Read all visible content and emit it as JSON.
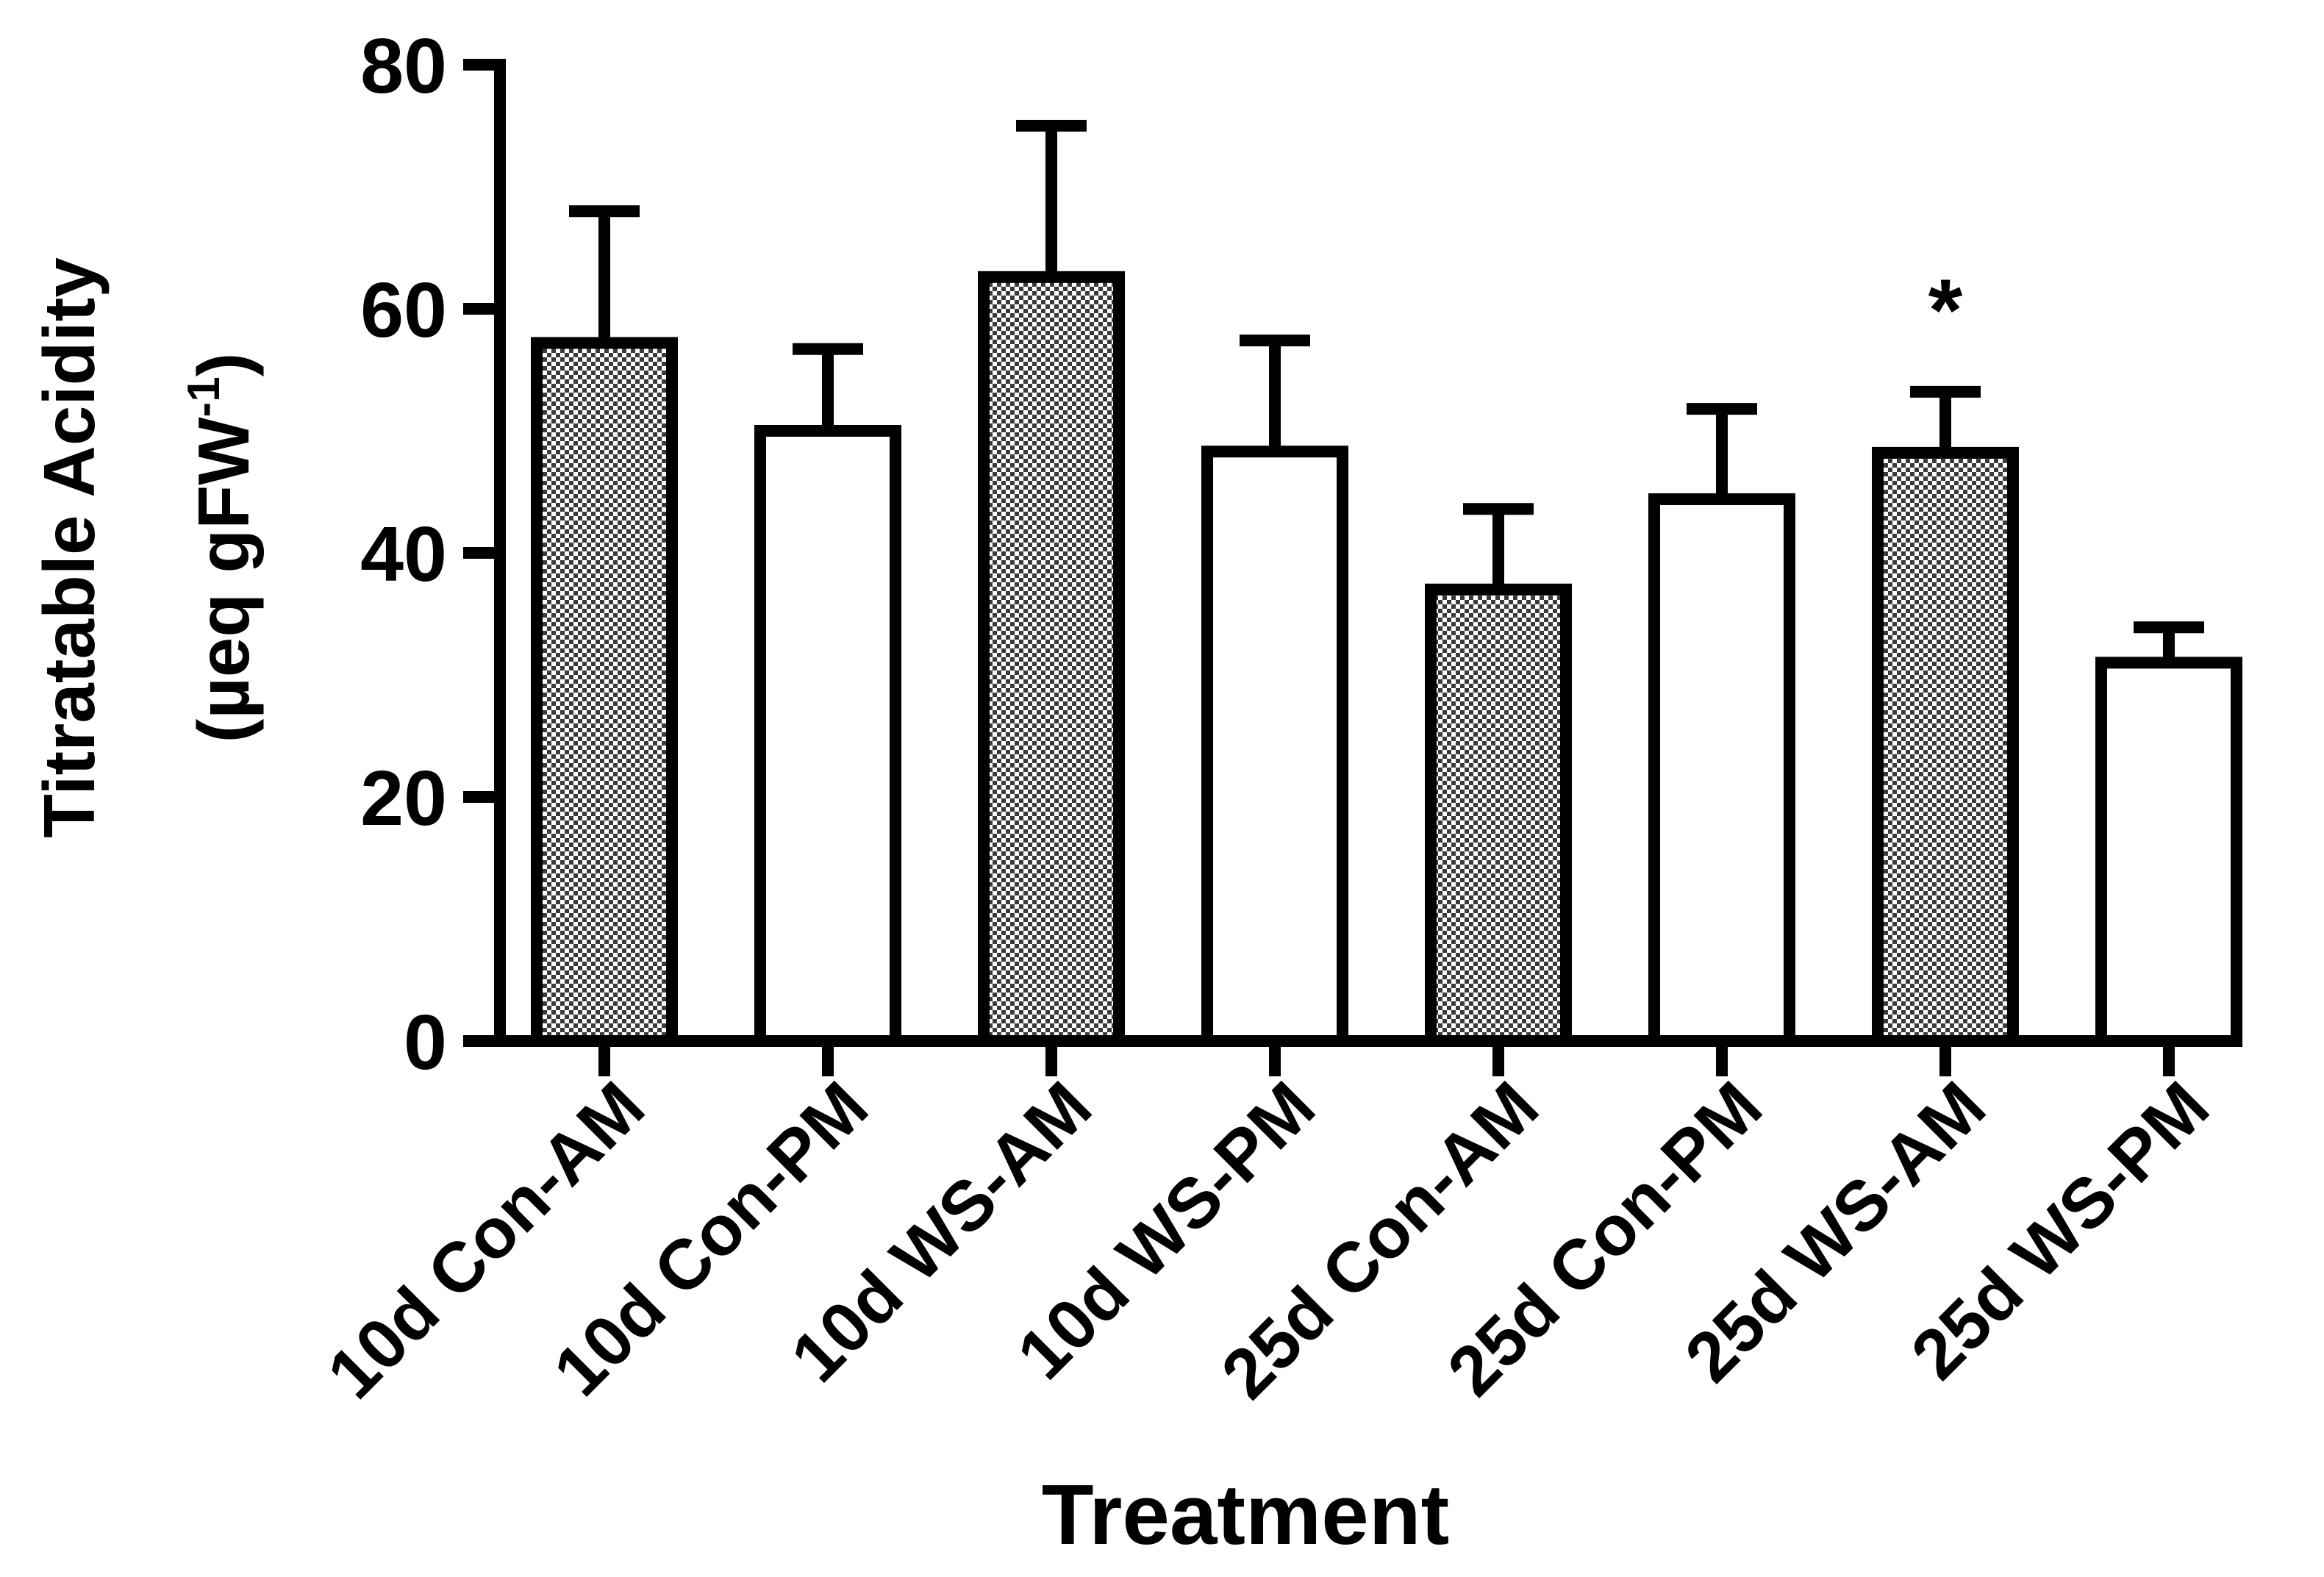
{
  "chart_data": {
    "type": "bar",
    "title": "",
    "xlabel": "Treatment",
    "ylabel": {
      "line1": "Titratable Acidity",
      "line2_prefix": "(µeq gFW",
      "line2_sup": "-1",
      "line2_suffix": ")"
    },
    "ylim": [
      0,
      80
    ],
    "yticks": [
      "0",
      "20",
      "40",
      "60",
      "80"
    ],
    "categories": [
      "10d Con-AM",
      "10d Con-PM",
      "10d WS-AM",
      "10d WS-PM",
      "25d Con-AM",
      "25d Con-PM",
      "25d WS-AM",
      "25d WS-PM"
    ],
    "values": [
      57.2,
      50.0,
      62.6,
      48.3,
      37.0,
      44.4,
      48.2,
      31.0
    ],
    "errors": [
      10.8,
      6.7,
      12.4,
      9.1,
      6.6,
      7.4,
      5.0,
      2.9
    ],
    "patterns": [
      "checkered",
      "plain",
      "checkered",
      "plain",
      "checkered",
      "plain",
      "checkered",
      "plain"
    ],
    "annotations": [
      {
        "category": "25d WS-AM",
        "text": "*"
      }
    ],
    "grid": false,
    "legend": "none"
  },
  "colors": {
    "axis": "#000000",
    "bar_fill": "#ffffff",
    "checker_dark": "#3a3a3a"
  }
}
